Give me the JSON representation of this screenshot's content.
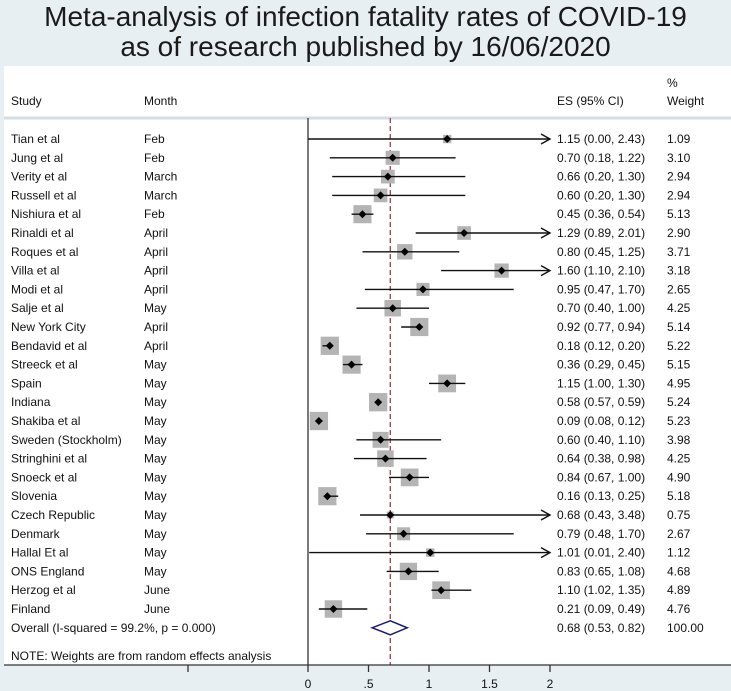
{
  "chart_data": {
    "type": "forest",
    "title_line1": "Meta-analysis of infection fatality rates of COVID-19",
    "title_line2": "as of research published by 16/06/2020",
    "headers": {
      "study": "Study",
      "month": "Month",
      "es": "ES (95% CI)",
      "pct": "%",
      "weight": "Weight"
    },
    "xlim": [
      0,
      2
    ],
    "xticks": [
      "0",
      ".5",
      "1",
      "1.5",
      "2"
    ],
    "xtick_values": [
      0,
      0.5,
      1,
      1.5,
      2
    ],
    "reference_line": 0.68,
    "studies": [
      {
        "study": "Tian et al",
        "month": "Feb",
        "es": 1.15,
        "lo": 0.0,
        "hi": 2.43,
        "es_text": "1.15 (0.00, 2.43)",
        "weight": "1.09"
      },
      {
        "study": "Jung et al",
        "month": "Feb",
        "es": 0.7,
        "lo": 0.18,
        "hi": 1.22,
        "es_text": "0.70 (0.18, 1.22)",
        "weight": "3.10"
      },
      {
        "study": "Verity et al",
        "month": "March",
        "es": 0.66,
        "lo": 0.2,
        "hi": 1.3,
        "es_text": "0.66 (0.20, 1.30)",
        "weight": "2.94"
      },
      {
        "study": "Russell et al",
        "month": "March",
        "es": 0.6,
        "lo": 0.2,
        "hi": 1.3,
        "es_text": "0.60 (0.20, 1.30)",
        "weight": "2.94"
      },
      {
        "study": "Nishiura et al",
        "month": "Feb",
        "es": 0.45,
        "lo": 0.36,
        "hi": 0.54,
        "es_text": "0.45 (0.36, 0.54)",
        "weight": "5.13"
      },
      {
        "study": "Rinaldi et al",
        "month": "April",
        "es": 1.29,
        "lo": 0.89,
        "hi": 2.01,
        "es_text": "1.29 (0.89, 2.01)",
        "weight": "2.90"
      },
      {
        "study": "Roques et al",
        "month": "April",
        "es": 0.8,
        "lo": 0.45,
        "hi": 1.25,
        "es_text": "0.80 (0.45, 1.25)",
        "weight": "3.71"
      },
      {
        "study": "Villa et al",
        "month": "April",
        "es": 1.6,
        "lo": 1.1,
        "hi": 2.1,
        "es_text": "1.60 (1.10, 2.10)",
        "weight": "3.18"
      },
      {
        "study": "Modi et al",
        "month": "April",
        "es": 0.95,
        "lo": 0.47,
        "hi": 1.7,
        "es_text": "0.95 (0.47, 1.70)",
        "weight": "2.65"
      },
      {
        "study": "Salje et al",
        "month": "May",
        "es": 0.7,
        "lo": 0.4,
        "hi": 1.0,
        "es_text": "0.70 (0.40, 1.00)",
        "weight": "4.25"
      },
      {
        "study": "New York City",
        "month": "April",
        "es": 0.92,
        "lo": 0.77,
        "hi": 0.94,
        "es_text": "0.92 (0.77, 0.94)",
        "weight": "5.14"
      },
      {
        "study": "Bendavid et al",
        "month": "April",
        "es": 0.18,
        "lo": 0.12,
        "hi": 0.2,
        "es_text": "0.18 (0.12, 0.20)",
        "weight": "5.22"
      },
      {
        "study": "Streeck et al",
        "month": "May",
        "es": 0.36,
        "lo": 0.29,
        "hi": 0.45,
        "es_text": "0.36 (0.29, 0.45)",
        "weight": "5.15"
      },
      {
        "study": "Spain",
        "month": "May",
        "es": 1.15,
        "lo": 1.0,
        "hi": 1.3,
        "es_text": "1.15 (1.00, 1.30)",
        "weight": "4.95"
      },
      {
        "study": "Indiana",
        "month": "May",
        "es": 0.58,
        "lo": 0.57,
        "hi": 0.59,
        "es_text": "0.58 (0.57, 0.59)",
        "weight": "5.24"
      },
      {
        "study": "Shakiba et al",
        "month": "May",
        "es": 0.09,
        "lo": 0.08,
        "hi": 0.12,
        "es_text": "0.09 (0.08, 0.12)",
        "weight": "5.23"
      },
      {
        "study": "Sweden (Stockholm)",
        "month": "May",
        "es": 0.6,
        "lo": 0.4,
        "hi": 1.1,
        "es_text": "0.60 (0.40, 1.10)",
        "weight": "3.98"
      },
      {
        "study": "Stringhini et al",
        "month": "May",
        "es": 0.64,
        "lo": 0.38,
        "hi": 0.98,
        "es_text": "0.64 (0.38, 0.98)",
        "weight": "4.25"
      },
      {
        "study": "Snoeck et al",
        "month": "May",
        "es": 0.84,
        "lo": 0.67,
        "hi": 1.0,
        "es_text": "0.84 (0.67, 1.00)",
        "weight": "4.90"
      },
      {
        "study": "Slovenia",
        "month": "May",
        "es": 0.16,
        "lo": 0.13,
        "hi": 0.25,
        "es_text": "0.16 (0.13, 0.25)",
        "weight": "5.18"
      },
      {
        "study": "Czech Republic",
        "month": "May",
        "es": 0.68,
        "lo": 0.43,
        "hi": 3.48,
        "es_text": "0.68 (0.43, 3.48)",
        "weight": "0.75"
      },
      {
        "study": "Denmark",
        "month": "May",
        "es": 0.79,
        "lo": 0.48,
        "hi": 1.7,
        "es_text": "0.79 (0.48, 1.70)",
        "weight": "2.67"
      },
      {
        "study": "Hallal Et al",
        "month": "May",
        "es": 1.01,
        "lo": 0.01,
        "hi": 2.4,
        "es_text": "1.01 (0.01, 2.40)",
        "weight": "1.12"
      },
      {
        "study": "ONS England",
        "month": "May",
        "es": 0.83,
        "lo": 0.65,
        "hi": 1.08,
        "es_text": "0.83 (0.65, 1.08)",
        "weight": "4.68"
      },
      {
        "study": "Herzog et al",
        "month": "June",
        "es": 1.1,
        "lo": 1.02,
        "hi": 1.35,
        "es_text": "1.10 (1.02, 1.35)",
        "weight": "4.89"
      },
      {
        "study": "Finland",
        "month": "June",
        "es": 0.21,
        "lo": 0.09,
        "hi": 0.49,
        "es_text": "0.21 (0.09, 0.49)",
        "weight": "4.76"
      }
    ],
    "overall": {
      "label": "Overall  (I-squared = 99.2%, p = 0.000)",
      "es": 0.68,
      "lo": 0.53,
      "hi": 0.82,
      "es_text": "0.68 (0.53, 0.82)",
      "weight": "100.00"
    },
    "note": "NOTE: Weights are from random effects analysis",
    "colors": {
      "box": "#b4b4b4",
      "diamond": "#1a1a6e",
      "refline": "#a0394a",
      "line": "#111111"
    }
  }
}
